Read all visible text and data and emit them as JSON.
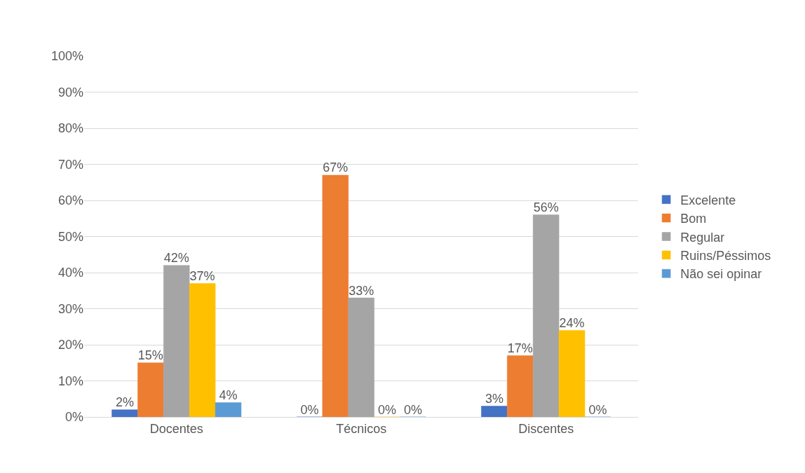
{
  "chart_data": {
    "type": "bar",
    "categories": [
      "Docentes",
      "Técnicos",
      "Discentes"
    ],
    "series": [
      {
        "name": "Excelente",
        "color": "#4472c4",
        "values": [
          2,
          0,
          3
        ],
        "value_labels": [
          "2%",
          "0%",
          "3%"
        ]
      },
      {
        "name": "Bom",
        "color": "#ed7d31",
        "values": [
          15,
          67,
          17
        ],
        "value_labels": [
          "15%",
          "67%",
          "17%"
        ]
      },
      {
        "name": "Regular",
        "color": "#a5a5a5",
        "values": [
          42,
          33,
          56
        ],
        "value_labels": [
          "42%",
          "33%",
          "56%"
        ]
      },
      {
        "name": "Ruins/Péssimos",
        "color": "#ffc000",
        "values": [
          37,
          0,
          24
        ],
        "value_labels": [
          "37%",
          "0%",
          "24%"
        ]
      },
      {
        "name": "Não sei opinar",
        "color": "#5b9bd5",
        "values": [
          4,
          0,
          0
        ],
        "value_labels": [
          "4%",
          "0%",
          "0%"
        ]
      }
    ],
    "ylim": [
      0,
      100
    ],
    "yticks": [
      {
        "value": 0,
        "label": "0%"
      },
      {
        "value": 10,
        "label": "10%"
      },
      {
        "value": 20,
        "label": "20%"
      },
      {
        "value": 30,
        "label": "30%"
      },
      {
        "value": 40,
        "label": "40%"
      },
      {
        "value": 50,
        "label": "50%"
      },
      {
        "value": 60,
        "label": "60%"
      },
      {
        "value": 70,
        "label": "70%"
      },
      {
        "value": 80,
        "label": "80%"
      },
      {
        "value": 90,
        "label": "90%"
      },
      {
        "value": 100,
        "label": "100%"
      }
    ],
    "grid": "y",
    "legend": "right"
  }
}
